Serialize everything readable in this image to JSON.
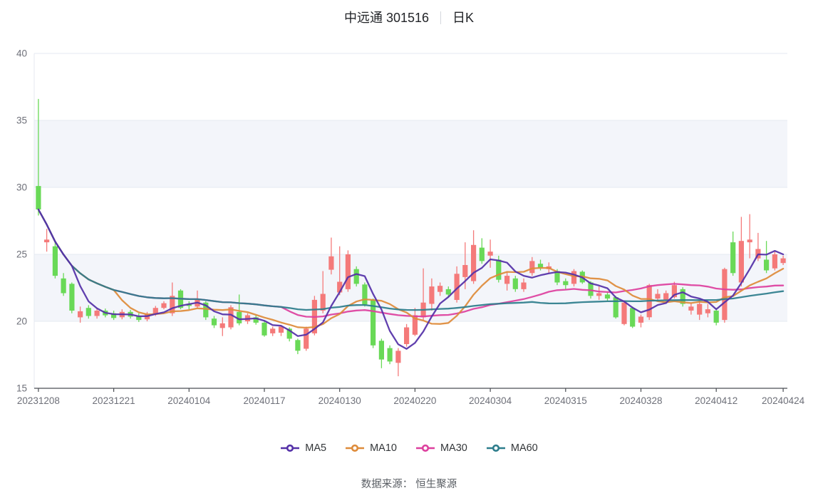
{
  "title": {
    "stock_label": "中远通 301516",
    "separator": "|",
    "period_label": "日K"
  },
  "source_note": "数据来源： 恒生聚源",
  "legend": [
    {
      "label": "MA5",
      "color": "#5430a8"
    },
    {
      "label": "MA10",
      "color": "#de8b3a"
    },
    {
      "label": "MA30",
      "color": "#dd3f9e"
    },
    {
      "label": "MA60",
      "color": "#2d7d8c"
    }
  ],
  "chart_data": {
    "type": "candlestick",
    "title": "中远通 301516 日K",
    "up_color": "#f47a7a",
    "down_color": "#69d957",
    "band_color": "#f3f5fa",
    "grid_color": "#e6eaf2",
    "axis_line_color": "#4a4d53",
    "axis_label_color": "#6e7079",
    "y_axis": {
      "min": 15,
      "max": 40,
      "ticks": [
        15,
        20,
        25,
        30,
        35,
        40
      ]
    },
    "x_ticks": [
      {
        "index": 0,
        "label": "20231208"
      },
      {
        "index": 9,
        "label": "20231221"
      },
      {
        "index": 18,
        "label": "20240104"
      },
      {
        "index": 27,
        "label": "20240117"
      },
      {
        "index": 36,
        "label": "20240130"
      },
      {
        "index": 45,
        "label": "20240220"
      },
      {
        "index": 54,
        "label": "20240304"
      },
      {
        "index": 63,
        "label": "20240315"
      },
      {
        "index": 72,
        "label": "20240328"
      },
      {
        "index": 81,
        "label": "20240412"
      },
      {
        "index": 89,
        "label": "20240424"
      }
    ],
    "ma_periods": [
      5,
      10,
      30,
      60
    ],
    "ma_colors": [
      "#5430a8",
      "#de8b3a",
      "#dd3f9e",
      "#2d7d8c"
    ],
    "candle_fields": [
      "date",
      "open",
      "high",
      "low",
      "close"
    ],
    "candles": [
      [
        "20231208",
        30.1,
        36.6,
        27.9,
        28.35
      ],
      [
        "20231211",
        25.9,
        26.9,
        25.2,
        26.1
      ],
      [
        "20231212",
        25.6,
        26.0,
        23.2,
        23.4
      ],
      [
        "20231213",
        23.2,
        23.6,
        21.9,
        22.1
      ],
      [
        "20231214",
        22.8,
        22.9,
        20.6,
        20.8
      ],
      [
        "20231215",
        20.3,
        21.1,
        19.9,
        20.75
      ],
      [
        "20231218",
        21.0,
        21.2,
        20.2,
        20.4
      ],
      [
        "20231219",
        20.4,
        21.0,
        20.2,
        20.8
      ],
      [
        "20231220",
        20.8,
        20.95,
        20.3,
        20.45
      ],
      [
        "20231221",
        20.6,
        20.8,
        20.1,
        20.25
      ],
      [
        "20231222",
        20.3,
        20.9,
        20.15,
        20.7
      ],
      [
        "20231225",
        20.7,
        20.85,
        20.2,
        20.35
      ],
      [
        "20231226",
        20.4,
        20.6,
        19.95,
        20.1
      ],
      [
        "20231227",
        20.15,
        20.7,
        20.0,
        20.55
      ],
      [
        "20231228",
        20.55,
        21.15,
        20.4,
        21.0
      ],
      [
        "20231229",
        21.0,
        21.5,
        20.9,
        21.35
      ],
      [
        "20240102",
        20.6,
        22.9,
        20.4,
        21.9
      ],
      [
        "20240103",
        22.3,
        22.4,
        20.9,
        21.0
      ],
      [
        "20240104",
        21.3,
        21.5,
        20.9,
        21.15
      ],
      [
        "20240105",
        21.1,
        22.3,
        21.0,
        21.6
      ],
      [
        "20240108",
        21.4,
        21.5,
        20.1,
        20.3
      ],
      [
        "20240109",
        20.2,
        20.4,
        19.5,
        19.7
      ],
      [
        "20240110",
        19.5,
        20.3,
        18.9,
        19.85
      ],
      [
        "20240111",
        19.55,
        21.2,
        19.4,
        21.05
      ],
      [
        "20240112",
        20.7,
        22.0,
        19.7,
        19.85
      ],
      [
        "20240115",
        20.0,
        20.6,
        19.8,
        20.45
      ],
      [
        "20240116",
        20.3,
        20.45,
        19.75,
        19.9
      ],
      [
        "20240117",
        19.9,
        20.0,
        18.85,
        18.95
      ],
      [
        "20240118",
        19.1,
        19.6,
        18.9,
        19.45
      ],
      [
        "20240119",
        19.15,
        19.7,
        18.9,
        19.6
      ],
      [
        "20240122",
        19.45,
        19.55,
        18.5,
        18.7
      ],
      [
        "20240123",
        18.6,
        18.7,
        17.55,
        17.8
      ],
      [
        "20240124",
        17.95,
        19.6,
        17.8,
        19.45
      ],
      [
        "20240125",
        19.1,
        21.9,
        18.95,
        21.6
      ],
      [
        "20240126",
        20.8,
        23.75,
        20.6,
        22.05
      ],
      [
        "20240129",
        23.85,
        26.25,
        23.5,
        24.85
      ],
      [
        "20240130",
        22.15,
        25.6,
        21.95,
        22.95
      ],
      [
        "20240131",
        22.4,
        25.3,
        22.2,
        25.0
      ],
      [
        "20240201",
        23.9,
        24.1,
        22.6,
        22.8
      ],
      [
        "20240202",
        22.75,
        22.9,
        21.1,
        21.25
      ],
      [
        "20240205",
        21.6,
        21.7,
        18.0,
        18.2
      ],
      [
        "20240206",
        18.55,
        18.7,
        16.5,
        17.15
      ],
      [
        "20240207",
        18.0,
        18.2,
        16.8,
        17.0
      ],
      [
        "20240208",
        16.9,
        18.0,
        15.9,
        17.8
      ],
      [
        "20240219",
        18.3,
        19.8,
        18.1,
        19.55
      ],
      [
        "20240220",
        19.0,
        21.0,
        18.9,
        20.45
      ],
      [
        "20240221",
        20.3,
        23.95,
        20.1,
        21.4
      ],
      [
        "20240222",
        21.3,
        23.2,
        20.8,
        22.6
      ],
      [
        "20240223",
        22.2,
        22.9,
        21.9,
        22.65
      ],
      [
        "20240226",
        22.4,
        22.6,
        21.8,
        22.0
      ],
      [
        "20240227",
        21.6,
        24.1,
        21.4,
        23.55
      ],
      [
        "20240228",
        23.3,
        25.9,
        22.4,
        24.2
      ],
      [
        "20240229",
        23.0,
        26.8,
        22.8,
        25.7
      ],
      [
        "20240301",
        25.5,
        26.2,
        24.3,
        24.5
      ],
      [
        "20240304",
        24.9,
        26.1,
        24.0,
        25.2
      ],
      [
        "20240305",
        24.6,
        24.9,
        22.9,
        23.1
      ],
      [
        "20240306",
        22.8,
        23.7,
        22.3,
        23.4
      ],
      [
        "20240307",
        23.2,
        23.4,
        22.2,
        22.4
      ],
      [
        "20240308",
        22.4,
        23.2,
        22.2,
        22.9
      ],
      [
        "20240311",
        23.6,
        24.8,
        23.4,
        24.5
      ],
      [
        "20240312",
        24.3,
        24.6,
        23.8,
        24.0
      ],
      [
        "20240313",
        23.9,
        24.4,
        23.6,
        24.1
      ],
      [
        "20240314",
        23.75,
        23.9,
        22.7,
        22.9
      ],
      [
        "20240315",
        23.0,
        23.2,
        22.4,
        22.7
      ],
      [
        "20240318",
        22.8,
        23.9,
        22.6,
        23.75
      ],
      [
        "20240319",
        23.7,
        23.8,
        22.8,
        22.9
      ],
      [
        "20240320",
        22.9,
        23.0,
        21.7,
        21.9
      ],
      [
        "20240321",
        21.9,
        22.6,
        21.6,
        22.1
      ],
      [
        "20240322",
        22.0,
        22.2,
        21.5,
        21.7
      ],
      [
        "20240325",
        21.8,
        21.9,
        20.2,
        20.3
      ],
      [
        "20240326",
        19.8,
        21.5,
        19.7,
        21.4
      ],
      [
        "20240327",
        21.0,
        21.1,
        19.5,
        19.6
      ],
      [
        "20240328",
        19.9,
        20.5,
        19.55,
        20.35
      ],
      [
        "20240329",
        20.3,
        22.8,
        20.1,
        22.7
      ],
      [
        "20240401",
        21.7,
        22.4,
        21.5,
        22.05
      ],
      [
        "20240402",
        21.6,
        22.3,
        21.4,
        22.1
      ],
      [
        "20240403",
        21.8,
        22.95,
        21.7,
        22.7
      ],
      [
        "20240408",
        22.4,
        22.55,
        21.1,
        21.3
      ],
      [
        "20240409",
        20.8,
        21.4,
        20.5,
        21.1
      ],
      [
        "20240410",
        20.5,
        21.5,
        20.1,
        21.3
      ],
      [
        "20240411",
        20.6,
        21.3,
        20.3,
        20.9
      ],
      [
        "20240412",
        20.8,
        21.0,
        19.7,
        19.9
      ],
      [
        "20240415",
        20.1,
        24.0,
        19.9,
        23.9
      ],
      [
        "20240416",
        25.9,
        26.7,
        23.4,
        23.6
      ],
      [
        "20240417",
        22.9,
        27.8,
        22.6,
        26.0
      ],
      [
        "20240418",
        25.9,
        28.0,
        24.7,
        26.1
      ],
      [
        "20240419",
        24.7,
        26.6,
        24.5,
        25.4
      ],
      [
        "20240422",
        24.6,
        26.0,
        23.6,
        23.8
      ],
      [
        "20240423",
        23.95,
        25.2,
        23.8,
        25.0
      ],
      [
        "20240424",
        24.35,
        24.9,
        24.2,
        24.7
      ]
    ]
  }
}
